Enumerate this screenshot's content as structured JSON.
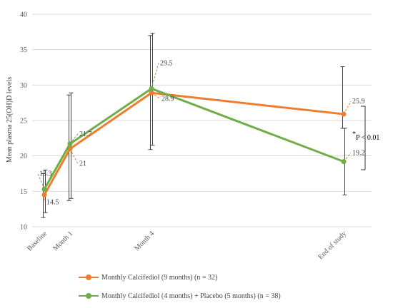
{
  "chart_data": {
    "type": "line",
    "ylabel": "Mean plasma 25(OH)D levels",
    "ylim": [
      10,
      40
    ],
    "yticks": [
      10,
      15,
      20,
      25,
      30,
      35,
      40
    ],
    "categories": [
      "Baseline",
      "Month 1",
      "Month 4",
      "End of study"
    ],
    "series": [
      {
        "name": "Monthly Calcifediol (9 months) (n = 32)",
        "color": "#ed7d31",
        "values": [
          14.5,
          21,
          28.9,
          25.9
        ],
        "labels": [
          "14.5",
          "21",
          "28.9",
          "25.9"
        ],
        "error_low": [
          11.3,
          13.7,
          20.9,
          23.9
        ],
        "error_high": [
          17.5,
          28.6,
          37.0,
          32.6
        ]
      },
      {
        "name": "Monthly Calcifediol (4 months) + Placebo (5 months) (n = 38)",
        "color": "#70ad47",
        "values": [
          15.3,
          21.7,
          29.5,
          19.2
        ],
        "labels": [
          "15.3",
          "21.7",
          "29.5",
          "19.2"
        ],
        "error_low": [
          12.0,
          14.0,
          21.5,
          14.5
        ],
        "error_high": [
          18.0,
          28.9,
          37.3,
          23.9
        ]
      }
    ],
    "annotation": {
      "text": "P < 0.01",
      "prefix": "*"
    },
    "grid": true,
    "legend_position": "bottom-left"
  }
}
